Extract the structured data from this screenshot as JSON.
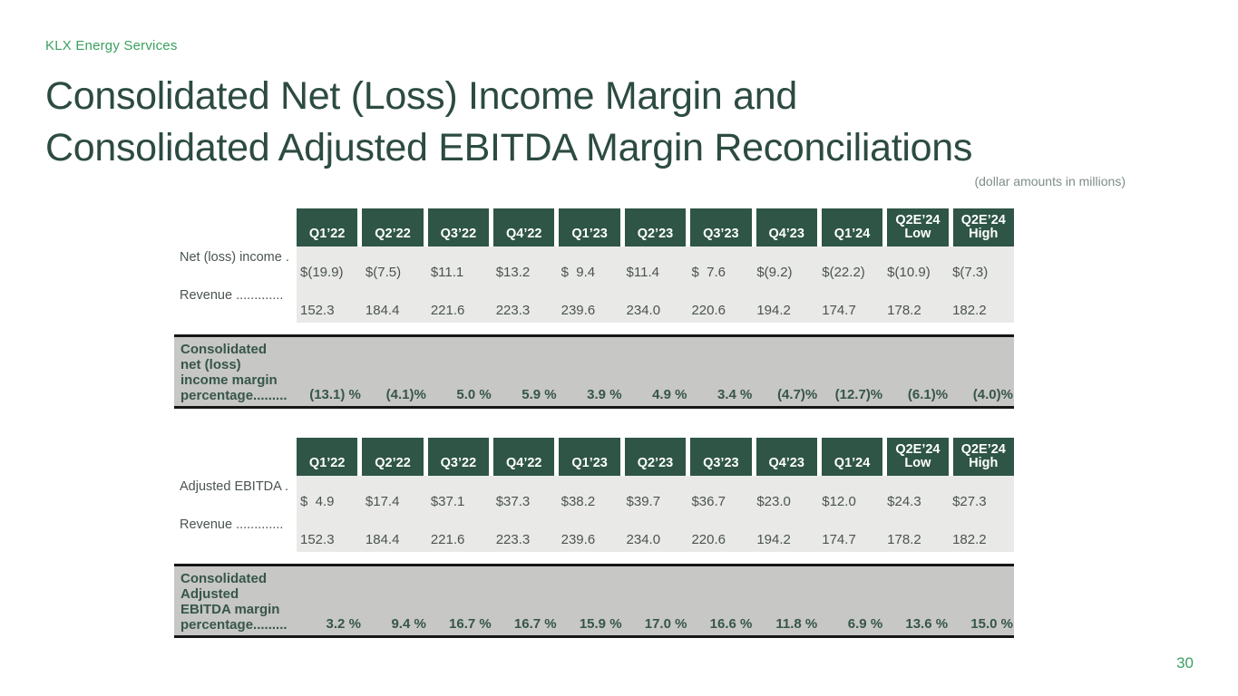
{
  "brand": "KLX Energy Services",
  "title_line1": "Consolidated Net (Loss) Income Margin and",
  "title_line2": "Consolidated Adjusted EBITDA Margin Reconciliations",
  "subtitle": "(dollar amounts in millions)",
  "page_number": "30",
  "colors": {
    "header_green": "#2E5546",
    "accent_green": "#3BA160",
    "title_green": "#2C4B42",
    "band_gray": "#C7C7C5",
    "data_gray": "#E9E9E8"
  },
  "columns": [
    "Q1’22",
    "Q2’22",
    "Q3’22",
    "Q4’22",
    "Q1’23",
    "Q2’23",
    "Q3’23",
    "Q4’23",
    "Q1’24",
    "Q2E’24\nLow",
    "Q2E’24\nHigh"
  ],
  "tables": [
    {
      "name": "Consolidated net (loss) income margin reconciliation",
      "rows": [
        {
          "label": "Net (loss) income .",
          "values": [
            "$(19.9)",
            "$(7.5)",
            "$11.1",
            "$13.2",
            "$  9.4",
            "$11.4",
            "$  7.6",
            "$(9.2)",
            "$(22.2)",
            "$(10.9)",
            "$(7.3)"
          ]
        },
        {
          "label": "Revenue .............",
          "values": [
            "152.3",
            "184.4",
            "221.6",
            "223.3",
            "239.6",
            "234.0",
            "220.6",
            "194.2",
            "174.7",
            "178.2",
            "182.2"
          ]
        }
      ],
      "margin_row": {
        "label": "Consolidated\nnet (loss)\nincome margin\npercentage.........",
        "values": [
          "(13.1) %",
          "(4.1)%",
          "5.0 %",
          "5.9 %",
          "3.9 %",
          "4.9 %",
          "3.4 %",
          "(4.7)%",
          "(12.7)%",
          "(6.1)%",
          "(4.0)%"
        ]
      }
    },
    {
      "name": "Consolidated Adjusted EBITDA margin reconciliation",
      "rows": [
        {
          "label": "Adjusted EBITDA .",
          "values": [
            "$  4.9",
            "$17.4",
            "$37.1",
            "$37.3",
            "$38.2",
            "$39.7",
            "$36.7",
            "$23.0",
            "$12.0",
            "$24.3",
            "$27.3"
          ]
        },
        {
          "label": "Revenue .............",
          "values": [
            "152.3",
            "184.4",
            "221.6",
            "223.3",
            "239.6",
            "234.0",
            "220.6",
            "194.2",
            "174.7",
            "178.2",
            "182.2"
          ]
        }
      ],
      "margin_row": {
        "label": "Consolidated\nAdjusted\nEBITDA margin\npercentage.........",
        "values": [
          "3.2 %",
          "9.4 %",
          "16.7 %",
          "16.7 %",
          "15.9 %",
          "17.0 %",
          "16.6 %",
          "11.8 %",
          "6.9 %",
          "13.6 %",
          "15.0 %"
        ]
      }
    }
  ]
}
